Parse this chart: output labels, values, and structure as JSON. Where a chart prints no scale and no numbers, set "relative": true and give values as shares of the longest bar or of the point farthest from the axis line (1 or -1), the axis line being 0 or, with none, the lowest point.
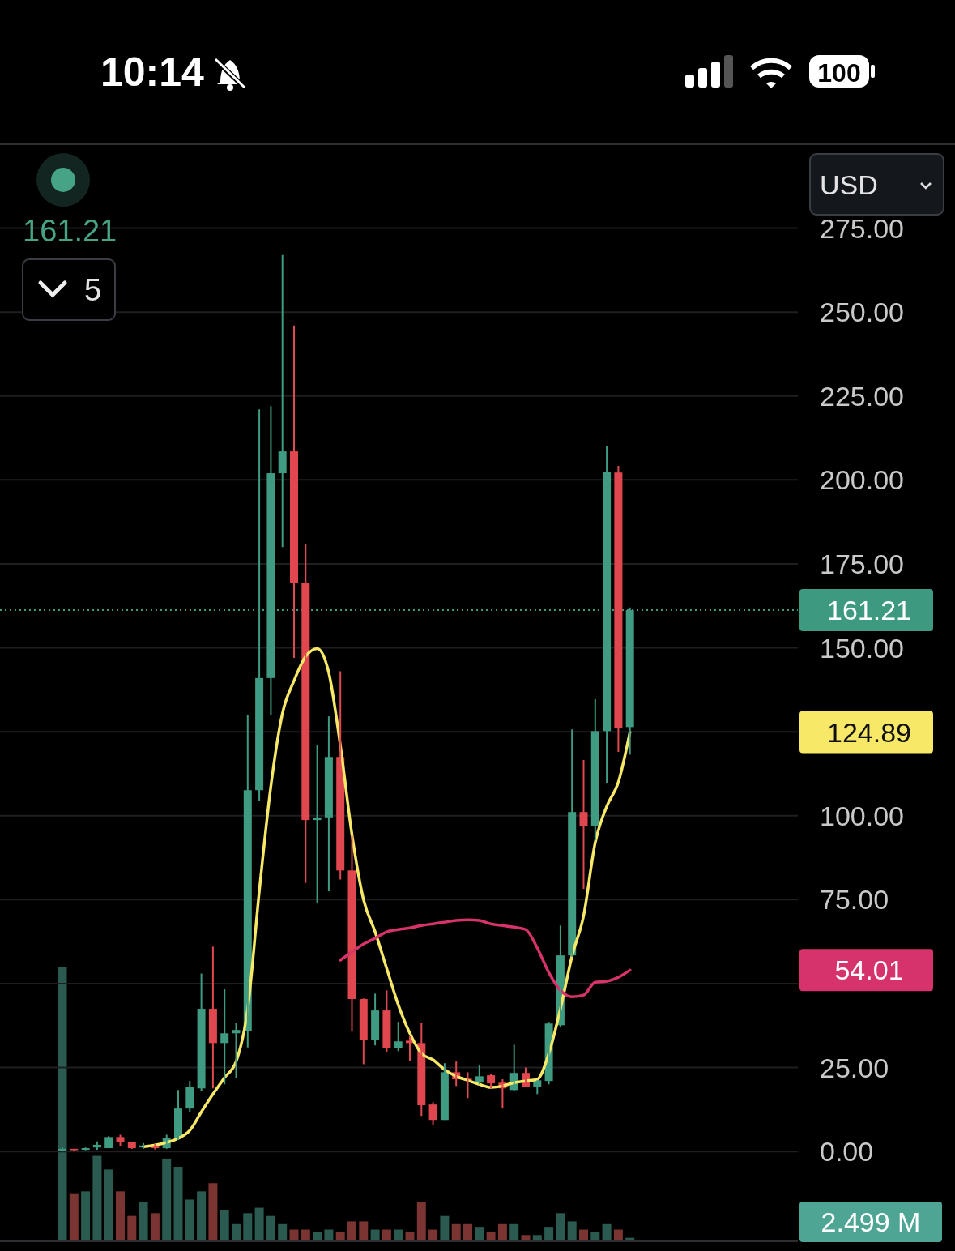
{
  "chart_data": [
    {
      "type": "candlestick",
      "categories": [
        null,
        null,
        null,
        null,
        null,
        null,
        null,
        null,
        null,
        null,
        null,
        null,
        null,
        null,
        null,
        null,
        null,
        null,
        null,
        null,
        null,
        null,
        null,
        null,
        null,
        null,
        null,
        null,
        null,
        null,
        null,
        null,
        null,
        null,
        null,
        null,
        null,
        null,
        null,
        null,
        null,
        null,
        null,
        null,
        null,
        null,
        null,
        null,
        null,
        null
      ],
      "ohlc": [
        [
          0.3,
          1.2,
          0,
          0.8
        ],
        [
          0.8,
          0.8,
          0.2,
          0.4
        ],
        [
          0.5,
          1.2,
          0.4,
          1.0
        ],
        [
          1.2,
          3,
          0.5,
          2
        ],
        [
          1,
          4.6,
          1,
          4.3
        ],
        [
          4.3,
          5,
          1.5,
          2.7
        ],
        [
          2.7,
          2.7,
          0.8,
          1.0
        ],
        [
          1.2,
          2.5,
          0.8,
          1.8
        ],
        [
          1.9,
          2.2,
          0.6,
          1.0
        ],
        [
          1,
          5,
          0.8,
          3.9
        ],
        [
          3.9,
          18.3,
          3.4,
          12.8
        ],
        [
          12.8,
          21,
          11.6,
          19.1
        ],
        [
          18.8,
          53,
          17.9,
          42.5
        ],
        [
          42.5,
          61,
          18.8,
          32.3
        ],
        [
          32.3,
          48.3,
          20,
          35.2
        ],
        [
          35.2,
          38.4,
          22,
          36.2
        ],
        [
          36,
          130,
          31,
          107.6
        ],
        [
          107.6,
          221,
          104.5,
          141
        ],
        [
          141,
          222,
          130,
          202
        ],
        [
          202,
          267,
          180,
          208.5
        ],
        [
          208.5,
          246,
          147,
          169.4
        ],
        [
          169.4,
          181,
          80,
          98.7
        ],
        [
          98.7,
          121,
          74,
          99.5
        ],
        [
          99.5,
          129.6,
          77.5,
          117.5
        ],
        [
          117.5,
          143,
          81,
          83.7
        ],
        [
          83.7,
          94,
          35.7,
          45.4
        ],
        [
          45.4,
          45.6,
          26,
          33.3
        ],
        [
          33.3,
          47,
          31.6,
          42
        ],
        [
          42,
          48,
          29.7,
          30.9
        ],
        [
          30.9,
          38.6,
          29.9,
          32.8
        ],
        [
          33,
          34.3,
          26.8,
          32.3
        ],
        [
          32.3,
          38.4,
          10.6,
          13.8
        ],
        [
          14,
          14.7,
          8,
          9.4
        ],
        [
          9.4,
          26.3,
          9.4,
          23.6
        ],
        [
          23.6,
          26.8,
          19.5,
          21.5
        ],
        [
          21.7,
          23.6,
          15.9,
          21.2
        ],
        [
          20.5,
          25.6,
          20,
          22.4
        ],
        [
          22.7,
          23.2,
          18.8,
          20.3
        ],
        [
          20.5,
          21.5,
          12.8,
          18.8
        ],
        [
          18.3,
          31.8,
          17.9,
          23.4
        ],
        [
          23.4,
          25,
          19.3,
          19.3
        ],
        [
          19.1,
          21.2,
          17.1,
          21.2
        ],
        [
          21,
          38.6,
          20,
          38.1
        ],
        [
          37.6,
          67.3,
          37,
          58.4
        ],
        [
          58.4,
          125.7,
          58,
          101.1
        ],
        [
          101.1,
          116.6,
          78.2,
          96.8
        ],
        [
          96.8,
          134.7,
          92.7,
          125.2
        ],
        [
          125.2,
          210,
          109.6,
          202.5
        ],
        [
          202.2,
          204.2,
          119,
          126.2
        ],
        [
          126.4,
          162,
          118.2,
          161.21
        ]
      ],
      "colors": [
        "#3f9b82",
        "#e0474f",
        "#3f9b82",
        "#3f9b82",
        "#3f9b82",
        "#e0474f",
        "#e0474f",
        "#3f9b82",
        "#e0474f",
        "#3f9b82",
        "#3f9b82",
        "#3f9b82",
        "#3f9b82",
        "#e0474f",
        "#3f9b82",
        "#3f9b82",
        "#3f9b82",
        "#3f9b82",
        "#3f9b82",
        "#3f9b82",
        "#e0474f",
        "#e0474f",
        "#3f9b82",
        "#3f9b82",
        "#e0474f",
        "#e0474f",
        "#e0474f",
        "#3f9b82",
        "#e0474f",
        "#3f9b82",
        "#e0474f",
        "#e0474f",
        "#e0474f",
        "#3f9b82",
        "#e0474f",
        "#e0474f",
        "#3f9b82",
        "#e0474f",
        "#e0474f",
        "#3f9b82",
        "#e0474f",
        "#3f9b82",
        "#3f9b82",
        "#3f9b82",
        "#3f9b82",
        "#e0474f",
        "#3f9b82",
        "#3f9b82",
        "#e0474f",
        "#3f9b82"
      ],
      "series": [
        {
          "type": "line",
          "color": "#f7e967",
          "values": [
            null,
            null,
            null,
            null,
            null,
            null,
            null,
            1.4,
            1.9,
            2.7,
            3.9,
            6.3,
            11.8,
            17.1,
            22,
            26.8,
            42.5,
            77.5,
            108.8,
            130.5,
            140.2,
            147.4,
            149.8,
            142.6,
            120.9,
            94.4,
            75,
            65.4,
            54.5,
            43.7,
            35.2,
            29.2,
            27.3,
            24.4,
            22.4,
            21.2,
            20,
            19.1,
            19.5,
            20.5,
            21,
            21.5,
            29.2,
            42.5,
            58.2,
            70.2,
            92,
            102.8,
            110,
            124.89
          ]
        },
        {
          "type": "line",
          "color": "#d6336c",
          "values": [
            null,
            null,
            null,
            null,
            null,
            null,
            null,
            null,
            null,
            null,
            null,
            null,
            null,
            null,
            null,
            null,
            null,
            null,
            null,
            null,
            null,
            null,
            null,
            null,
            57,
            59.4,
            61.8,
            63.5,
            65.4,
            66.1,
            66.6,
            67.3,
            67.8,
            68.3,
            68.8,
            69,
            68.8,
            67.8,
            67.3,
            66.8,
            66.1,
            60.6,
            53.3,
            48,
            46.1,
            46.6,
            50.4,
            50.7,
            51.9,
            54.01
          ]
        }
      ],
      "ylim": [
        -26.5,
        299.5
      ],
      "yticks": [
        {
          "value": 0,
          "label": "0.00"
        },
        {
          "value": 25,
          "label": "25.00"
        },
        {
          "value": 50,
          "label": null
        },
        {
          "value": 75,
          "label": "75.00"
        },
        {
          "value": 100,
          "label": "100.00"
        },
        {
          "value": 125,
          "label": null
        },
        {
          "value": 150,
          "label": "150.00"
        },
        {
          "value": 175,
          "label": "175.00"
        },
        {
          "value": 200,
          "label": "200.00"
        },
        {
          "value": 225,
          "label": "225.00"
        },
        {
          "value": 250,
          "label": "250.00"
        },
        {
          "value": 275,
          "label": "275.00"
        }
      ],
      "ref_lines": [
        {
          "axis": "y",
          "value": 161.21,
          "label": "161.21",
          "color": "#3d9a80",
          "line_style": "dotted"
        }
      ],
      "grid": "y",
      "tick_labels": "y",
      "annotations": [
        "10:14",
        "100",
        "USD",
        "161.21",
        "5",
        "124.89",
        "54.01"
      ]
    },
    {
      "type": "bar",
      "categories": [
        null,
        null,
        null,
        null,
        null,
        null,
        null,
        null,
        null,
        null,
        null,
        null,
        null,
        null,
        null,
        null,
        null,
        null,
        null,
        null,
        null,
        null,
        null,
        null,
        null,
        null,
        null,
        null,
        null,
        null,
        null,
        null,
        null,
        null,
        null,
        null,
        null,
        null,
        null,
        null,
        null,
        null,
        null,
        null,
        null,
        null,
        null,
        null,
        null,
        null
      ],
      "relative": true,
      "values": [
        1,
        0.17,
        0.18,
        0.31,
        0.26,
        0.18,
        0.09,
        0.14,
        0.1,
        0.3,
        0.27,
        0.15,
        0.18,
        0.21,
        0.11,
        0.06,
        0.1,
        0.12,
        0.09,
        0.06,
        0.04,
        0.04,
        0.03,
        0.04,
        0.03,
        0.07,
        0.07,
        0.04,
        0.04,
        0.04,
        0.03,
        0.14,
        0.04,
        0.09,
        0.06,
        0.06,
        0.05,
        0.03,
        0.06,
        0.06,
        0.02,
        0.02,
        0.05,
        0.1,
        0.07,
        0.04,
        0.03,
        0.06,
        0.04,
        0.01
      ],
      "colors": [
        "#2b5a50",
        "#7a3431",
        "#2b5a50",
        "#2b5a50",
        "#2b5a50",
        "#7a3431",
        "#7a3431",
        "#2b5a50",
        "#7a3431",
        "#2b5a50",
        "#2b5a50",
        "#2b5a50",
        "#2b5a50",
        "#7a3431",
        "#2b5a50",
        "#2b5a50",
        "#2b5a50",
        "#2b5a50",
        "#2b5a50",
        "#2b5a50",
        "#7a3431",
        "#7a3431",
        "#2b5a50",
        "#2b5a50",
        "#7a3431",
        "#7a3431",
        "#7a3431",
        "#2b5a50",
        "#7a3431",
        "#2b5a50",
        "#7a3431",
        "#7a3431",
        "#7a3431",
        "#2b5a50",
        "#7a3431",
        "#7a3431",
        "#2b5a50",
        "#7a3431",
        "#7a3431",
        "#2b5a50",
        "#7a3431",
        "#2b5a50",
        "#2b5a50",
        "#2b5a50",
        "#2b5a50",
        "#7a3431",
        "#2b5a50",
        "#2b5a50",
        "#7a3431",
        "#2b5a50"
      ],
      "annotations": [
        "2.499 M"
      ]
    }
  ]
}
